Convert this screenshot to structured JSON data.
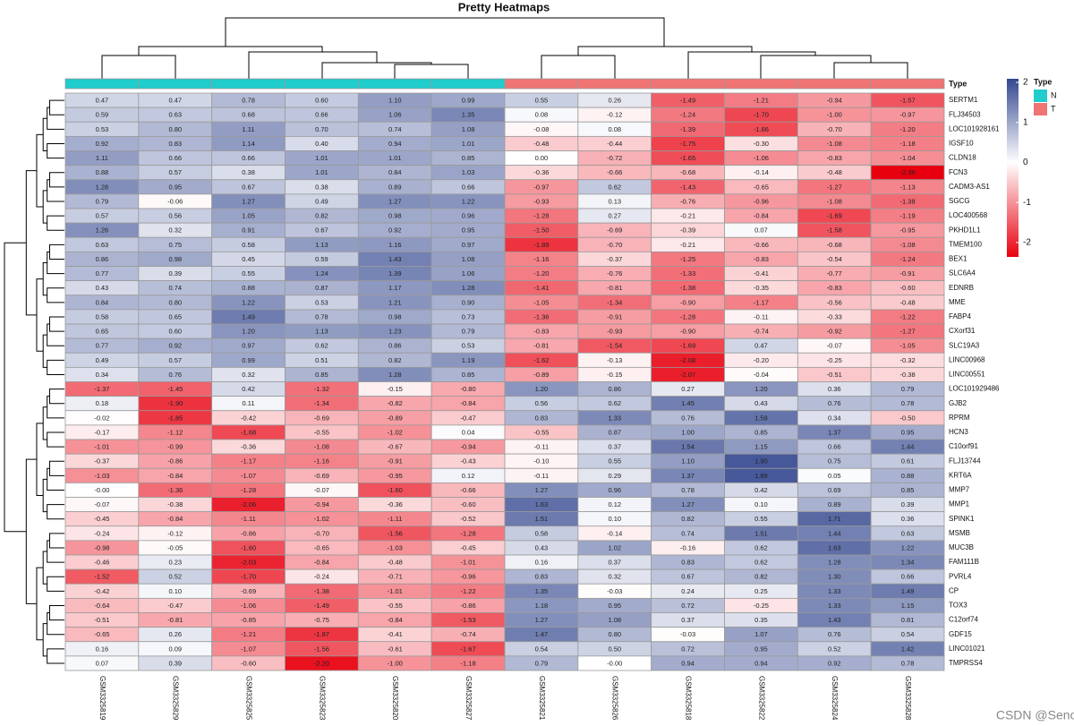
{
  "chart_data": {
    "type": "heatmap",
    "title": "Pretty Heatmaps",
    "columns": [
      "GSM3325819",
      "GSM3325829",
      "GSM3325825",
      "GSM3325823",
      "GSM3325820",
      "GSM3325827",
      "GSM3325821",
      "GSM3325826",
      "GSM3325818",
      "GSM3325822",
      "GSM3325824",
      "GSM3325828"
    ],
    "column_types": [
      "N",
      "N",
      "N",
      "N",
      "N",
      "N",
      "T",
      "T",
      "T",
      "T",
      "T",
      "T"
    ],
    "rows": [
      "SERTM1",
      "FLJ34503",
      "LOC101928161",
      "IGSF10",
      "CLDN18",
      "FCN3",
      "CADM3-AS1",
      "SGCG",
      "LOC400568",
      "PKHD1L1",
      "TMEM100",
      "BEX1",
      "SLC6A4",
      "EDNRB",
      "MME",
      "FABP4",
      "CXorf31",
      "SLC19A3",
      "LINC00968",
      "LINC00551",
      "LOC101929486",
      "GJB2",
      "RPRM",
      "HCN3",
      "C10orf91",
      "FLJ13744",
      "KRT6A",
      "MMP7",
      "MMP1",
      "SPINK1",
      "MSMB",
      "MUC3B",
      "FAM111B",
      "PVRL4",
      "CP",
      "TOX3",
      "C12orf74",
      "GDF15",
      "LINC01021",
      "TMPRSS4"
    ],
    "values": [
      [
        0.47,
        0.47,
        0.78,
        0.6,
        1.1,
        0.99,
        0.55,
        0.26,
        -1.49,
        -1.21,
        -0.94,
        -1.57
      ],
      [
        0.59,
        0.63,
        0.68,
        0.66,
        1.06,
        1.35,
        0.08,
        -0.12,
        -1.24,
        -1.7,
        -1.0,
        -0.97
      ],
      [
        0.53,
        0.8,
        1.11,
        0.7,
        0.74,
        1.08,
        -0.08,
        0.08,
        -1.39,
        -1.66,
        -0.7,
        -1.2
      ],
      [
        0.92,
        0.83,
        1.14,
        0.4,
        0.94,
        1.01,
        -0.48,
        -0.44,
        -1.75,
        -0.3,
        -1.08,
        -1.18
      ],
      [
        1.11,
        0.66,
        0.66,
        1.01,
        1.01,
        0.85,
        0.0,
        -0.72,
        -1.65,
        -1.06,
        -0.83,
        -1.04
      ],
      [
        0.88,
        0.57,
        0.38,
        1.01,
        0.84,
        1.03,
        -0.36,
        -0.66,
        -0.68,
        -0.14,
        -0.48,
        -2.36
      ],
      [
        1.28,
        0.95,
        0.67,
        0.38,
        0.89,
        0.66,
        -0.97,
        0.62,
        -1.43,
        -0.65,
        -1.27,
        -1.13
      ],
      [
        0.79,
        -0.06,
        1.27,
        0.49,
        1.27,
        1.22,
        -0.93,
        0.13,
        -0.76,
        -0.96,
        -1.08,
        -1.38
      ],
      [
        0.57,
        0.56,
        1.05,
        0.82,
        0.98,
        0.96,
        -1.28,
        0.27,
        -0.21,
        -0.84,
        -1.69,
        -1.19
      ],
      [
        1.26,
        0.32,
        0.91,
        0.67,
        0.92,
        0.95,
        -1.5,
        -0.69,
        -0.39,
        0.07,
        -1.58,
        -0.95
      ],
      [
        0.63,
        0.75,
        0.58,
        1.13,
        1.16,
        0.97,
        -1.89,
        -0.7,
        -0.21,
        -0.66,
        -0.68,
        -1.08
      ],
      [
        0.86,
        0.98,
        0.45,
        0.59,
        1.43,
        1.08,
        -1.16,
        -0.37,
        -1.25,
        -0.83,
        -0.54,
        -1.24
      ],
      [
        0.77,
        0.39,
        0.55,
        1.24,
        1.39,
        1.06,
        -1.2,
        -0.76,
        -1.33,
        -0.41,
        -0.77,
        -0.91
      ],
      [
        0.43,
        0.74,
        0.88,
        0.87,
        1.17,
        1.28,
        -1.41,
        -0.81,
        -1.38,
        -0.35,
        -0.83,
        -0.6
      ],
      [
        0.84,
        0.8,
        1.22,
        0.53,
        1.21,
        0.9,
        -1.05,
        -1.34,
        -0.9,
        -1.17,
        -0.56,
        -0.48
      ],
      [
        0.58,
        0.65,
        1.49,
        0.78,
        0.98,
        0.73,
        -1.36,
        -0.91,
        -1.28,
        -0.11,
        -0.33,
        -1.22
      ],
      [
        0.65,
        0.6,
        1.2,
        1.13,
        1.23,
        0.79,
        -0.83,
        -0.93,
        -0.9,
        -0.74,
        -0.92,
        -1.27
      ],
      [
        0.77,
        0.92,
        0.97,
        0.62,
        0.86,
        0.53,
        -0.81,
        -1.54,
        -1.69,
        0.47,
        -0.07,
        -1.05
      ],
      [
        0.49,
        0.57,
        0.99,
        0.51,
        0.82,
        1.19,
        -1.62,
        -0.13,
        -2.08,
        -0.2,
        -0.25,
        -0.32
      ],
      [
        0.34,
        0.76,
        0.32,
        0.85,
        1.28,
        0.85,
        -0.89,
        -0.15,
        -2.07,
        -0.04,
        -0.51,
        -0.38
      ],
      [
        -1.37,
        -1.45,
        0.42,
        -1.32,
        -0.15,
        -0.8,
        1.2,
        0.86,
        0.27,
        1.2,
        0.36,
        0.79
      ],
      [
        0.18,
        -1.9,
        0.11,
        -1.34,
        -0.82,
        -0.84,
        0.56,
        0.62,
        1.45,
        0.43,
        0.76,
        0.78
      ],
      [
        -0.02,
        -1.85,
        -0.42,
        -0.69,
        -0.89,
        -0.47,
        0.83,
        1.33,
        0.76,
        1.59,
        0.34,
        -0.5
      ],
      [
        -0.17,
        -1.12,
        -1.68,
        -0.55,
        -1.02,
        0.04,
        -0.55,
        0.87,
        1.0,
        0.85,
        1.37,
        0.95
      ],
      [
        -1.01,
        -0.99,
        -0.36,
        -1.08,
        -0.67,
        -0.94,
        -0.11,
        0.37,
        1.54,
        1.15,
        0.66,
        1.44
      ],
      [
        -0.37,
        -0.86,
        -1.17,
        -1.16,
        -0.91,
        -0.43,
        -0.1,
        0.55,
        1.1,
        1.9,
        0.75,
        0.61
      ],
      [
        -1.03,
        -0.84,
        -1.07,
        -0.69,
        -0.95,
        0.12,
        -0.11,
        0.29,
        1.37,
        1.89,
        0.05,
        0.88
      ],
      [
        0.0,
        -1.36,
        -1.28,
        -0.07,
        -1.6,
        -0.66,
        1.27,
        0.96,
        0.78,
        0.42,
        0.69,
        0.85
      ],
      [
        -0.07,
        -0.38,
        -2.06,
        -0.94,
        -0.36,
        -0.6,
        1.63,
        0.12,
        1.27,
        0.1,
        0.89,
        0.39
      ],
      [
        -0.45,
        -0.84,
        -1.11,
        -1.02,
        -1.11,
        -0.52,
        1.51,
        0.1,
        0.82,
        0.55,
        1.71,
        0.36
      ],
      [
        -0.24,
        -0.12,
        -0.86,
        -0.7,
        -1.56,
        -1.28,
        0.58,
        -0.14,
        0.74,
        1.51,
        1.44,
        0.63
      ],
      [
        -0.98,
        -0.05,
        -1.6,
        -0.65,
        -1.03,
        -0.45,
        0.43,
        1.02,
        -0.16,
        0.62,
        1.63,
        1.22
      ],
      [
        -0.46,
        0.23,
        -2.03,
        -0.84,
        -0.48,
        -1.01,
        0.16,
        0.37,
        0.83,
        0.62,
        1.28,
        1.34
      ],
      [
        -1.52,
        0.52,
        -1.7,
        -0.24,
        -0.71,
        -0.96,
        0.83,
        0.32,
        0.67,
        0.82,
        1.3,
        0.66
      ],
      [
        -0.42,
        0.1,
        -0.69,
        -1.38,
        -1.01,
        -1.22,
        1.35,
        -0.03,
        0.24,
        0.25,
        1.33,
        1.49
      ],
      [
        -0.64,
        -0.47,
        -1.06,
        -1.49,
        -0.55,
        -0.86,
        1.18,
        0.95,
        0.72,
        -0.25,
        1.33,
        1.15
      ],
      [
        -0.51,
        -0.81,
        -0.85,
        -0.75,
        -0.84,
        -1.53,
        1.27,
        1.08,
        0.37,
        0.35,
        1.43,
        0.81
      ],
      [
        -0.65,
        0.26,
        -1.21,
        -1.87,
        -0.41,
        -0.74,
        1.47,
        0.8,
        -0.03,
        1.07,
        0.76,
        0.54
      ],
      [
        0.16,
        0.09,
        -1.07,
        -1.56,
        -0.61,
        -1.67,
        0.54,
        0.5,
        0.72,
        0.95,
        0.52,
        1.42
      ],
      [
        0.07,
        0.39,
        -0.6,
        -2.2,
        -1.0,
        -1.18,
        0.79,
        0.0,
        0.94,
        0.94,
        0.92,
        0.78
      ]
    ],
    "value_labels": [
      [
        "0.47",
        "0.47",
        "0.78",
        "0.60",
        "1.10",
        "0.99",
        "0.55",
        "0.26",
        "-1.49",
        "-1.21",
        "-0.94",
        "-1.57"
      ],
      [
        "0.59",
        "0.63",
        "0.68",
        "0.66",
        "1.06",
        "1.35",
        "0.08",
        "-0.12",
        "-1.24",
        "-1.70",
        "-1.00",
        "-0.97"
      ],
      [
        "0.53",
        "0.80",
        "1.11",
        "0.70",
        "0.74",
        "1.08",
        "-0.08",
        "0.08",
        "-1.39",
        "-1.66",
        "-0.70",
        "-1.20"
      ],
      [
        "0.92",
        "0.83",
        "1.14",
        "0.40",
        "0.94",
        "1.01",
        "-0.48",
        "-0.44",
        "-1.75",
        "-0.30",
        "-1.08",
        "-1.18"
      ],
      [
        "1.11",
        "0.66",
        "0.66",
        "1.01",
        "1.01",
        "0.85",
        "0.00",
        "-0.72",
        "-1.65",
        "-1.06",
        "-0.83",
        "-1.04"
      ],
      [
        "0.88",
        "0.57",
        "0.38",
        "1.01",
        "0.84",
        "1.03",
        "-0.36",
        "-0.66",
        "-0.68",
        "-0.14",
        "-0.48",
        "-2.36"
      ],
      [
        "1.28",
        "0.95",
        "0.67",
        "0.38",
        "0.89",
        "0.66",
        "-0.97",
        "0.62",
        "-1.43",
        "-0.65",
        "-1.27",
        "-1.13"
      ],
      [
        "0.79",
        "-0.06",
        "1.27",
        "0.49",
        "1.27",
        "1.22",
        "-0.93",
        "0.13",
        "-0.76",
        "-0.96",
        "-1.08",
        "-1.38"
      ],
      [
        "0.57",
        "0.56",
        "1.05",
        "0.82",
        "0.98",
        "0.96",
        "-1.28",
        "0.27",
        "-0.21",
        "-0.84",
        "-1.69",
        "-1.19"
      ],
      [
        "1.26",
        "0.32",
        "0.91",
        "0.67",
        "0.92",
        "0.95",
        "-1.50",
        "-0.69",
        "-0.39",
        "0.07",
        "-1.58",
        "-0.95"
      ],
      [
        "0.63",
        "0.75",
        "0.58",
        "1.13",
        "1.16",
        "0.97",
        "-1.89",
        "-0.70",
        "-0.21",
        "-0.66",
        "-0.68",
        "-1.08"
      ],
      [
        "0.86",
        "0.98",
        "0.45",
        "0.59",
        "1.43",
        "1.08",
        "-1.16",
        "-0.37",
        "-1.25",
        "-0.83",
        "-0.54",
        "-1.24"
      ],
      [
        "0.77",
        "0.39",
        "0.55",
        "1.24",
        "1.39",
        "1.06",
        "-1.20",
        "-0.76",
        "-1.33",
        "-0.41",
        "-0.77",
        "-0.91"
      ],
      [
        "0.43",
        "0.74",
        "0.88",
        "0.87",
        "1.17",
        "1.28",
        "-1.41",
        "-0.81",
        "-1.38",
        "-0.35",
        "-0.83",
        "-0.60"
      ],
      [
        "0.84",
        "0.80",
        "1.22",
        "0.53",
        "1.21",
        "0.90",
        "-1.05",
        "-1.34",
        "-0.90",
        "-1.17",
        "-0.56",
        "-0.48"
      ],
      [
        "0.58",
        "0.65",
        "1.49",
        "0.78",
        "0.98",
        "0.73",
        "-1.36",
        "-0.91",
        "-1.28",
        "-0.11",
        "-0.33",
        "-1.22"
      ],
      [
        "0.65",
        "0.60",
        "1.20",
        "1.13",
        "1.23",
        "0.79",
        "-0.83",
        "-0.93",
        "-0.90",
        "-0.74",
        "-0.92",
        "-1.27"
      ],
      [
        "0.77",
        "0.92",
        "0.97",
        "0.62",
        "0.86",
        "0.53",
        "-0.81",
        "-1.54",
        "-1.69",
        "0.47",
        "-0.07",
        "-1.05"
      ],
      [
        "0.49",
        "0.57",
        "0.99",
        "0.51",
        "0.82",
        "1.19",
        "-1.62",
        "-0.13",
        "-2.08",
        "-0.20",
        "-0.25",
        "-0.32"
      ],
      [
        "0.34",
        "0.76",
        "0.32",
        "0.85",
        "1.28",
        "0.85",
        "-0.89",
        "-0.15",
        "-2.07",
        "-0.04",
        "-0.51",
        "-0.38"
      ],
      [
        "-1.37",
        "-1.45",
        "0.42",
        "-1.32",
        "-0.15",
        "-0.80",
        "1.20",
        "0.86",
        "0.27",
        "1.20",
        "0.36",
        "0.79"
      ],
      [
        "0.18",
        "-1.90",
        "0.11",
        "-1.34",
        "-0.82",
        "-0.84",
        "0.56",
        "0.62",
        "1.45",
        "0.43",
        "0.76",
        "0.78"
      ],
      [
        "-0.02",
        "-1.85",
        "-0.42",
        "-0.69",
        "-0.89",
        "-0.47",
        "0.83",
        "1.33",
        "0.76",
        "1.59",
        "0.34",
        "-0.50"
      ],
      [
        "-0.17",
        "-1.12",
        "-1.68",
        "-0.55",
        "-1.02",
        "0.04",
        "-0.55",
        "0.87",
        "1.00",
        "0.85",
        "1.37",
        "0.95"
      ],
      [
        "-1.01",
        "-0.99",
        "-0.36",
        "-1.08",
        "-0.67",
        "-0.94",
        "-0.11",
        "0.37",
        "1.54",
        "1.15",
        "0.66",
        "1.44"
      ],
      [
        "-0.37",
        "-0.86",
        "-1.17",
        "-1.16",
        "-0.91",
        "-0.43",
        "-0.10",
        "0.55",
        "1.10",
        "1.90",
        "0.75",
        "0.61"
      ],
      [
        "-1.03",
        "-0.84",
        "-1.07",
        "-0.69",
        "-0.95",
        "0.12",
        "-0.11",
        "0.29",
        "1.37",
        "1.89",
        "0.05",
        "0.88"
      ],
      [
        "-0.00",
        "-1.36",
        "-1.28",
        "-0.07",
        "-1.60",
        "-0.66",
        "1.27",
        "0.96",
        "0.78",
        "0.42",
        "0.69",
        "0.85"
      ],
      [
        "-0.07",
        "-0.38",
        "-2.06",
        "-0.94",
        "-0.36",
        "-0.60",
        "1.63",
        "0.12",
        "1.27",
        "0.10",
        "0.89",
        "0.39"
      ],
      [
        "-0.45",
        "-0.84",
        "-1.11",
        "-1.02",
        "-1.11",
        "-0.52",
        "1.51",
        "0.10",
        "0.82",
        "0.55",
        "1.71",
        "0.36"
      ],
      [
        "-0.24",
        "-0.12",
        "-0.86",
        "-0.70",
        "-1.56",
        "-1.28",
        "0.58",
        "-0.14",
        "0.74",
        "1.51",
        "1.44",
        "0.63"
      ],
      [
        "-0.98",
        "-0.05",
        "-1.60",
        "-0.65",
        "-1.03",
        "-0.45",
        "0.43",
        "1.02",
        "-0.16",
        "0.62",
        "1.63",
        "1.22"
      ],
      [
        "-0.46",
        "0.23",
        "-2.03",
        "-0.84",
        "-0.48",
        "-1.01",
        "0.16",
        "0.37",
        "0.83",
        "0.62",
        "1.28",
        "1.34"
      ],
      [
        "-1.52",
        "0.52",
        "-1.70",
        "-0.24",
        "-0.71",
        "-0.96",
        "0.83",
        "0.32",
        "0.67",
        "0.82",
        "1.30",
        "0.66"
      ],
      [
        "-0.42",
        "0.10",
        "-0.69",
        "-1.38",
        "-1.01",
        "-1.22",
        "1.35",
        "-0.03",
        "0.24",
        "0.25",
        "1.33",
        "1.49"
      ],
      [
        "-0.64",
        "-0.47",
        "-1.06",
        "-1.49",
        "-0.55",
        "-0.86",
        "1.18",
        "0.95",
        "0.72",
        "-0.25",
        "1.33",
        "1.15"
      ],
      [
        "-0.51",
        "-0.81",
        "-0.85",
        "-0.75",
        "-0.84",
        "-1.53",
        "1.27",
        "1.08",
        "0.37",
        "0.35",
        "1.43",
        "0.81"
      ],
      [
        "-0.65",
        "0.26",
        "-1.21",
        "-1.87",
        "-0.41",
        "-0.74",
        "1.47",
        "0.80",
        "-0.03",
        "1.07",
        "0.76",
        "0.54"
      ],
      [
        "0.16",
        "0.09",
        "-1.07",
        "-1.56",
        "-0.61",
        "-1.67",
        "0.54",
        "0.50",
        "0.72",
        "0.95",
        "0.52",
        "1.42"
      ],
      [
        "0.07",
        "0.39",
        "-0.60",
        "-2.20",
        "-1.00",
        "-1.18",
        "0.79",
        "-0.00",
        "0.94",
        "0.94",
        "0.92",
        "0.78"
      ]
    ],
    "annotation": {
      "title": "Type",
      "levels": [
        {
          "name": "N",
          "color": "#20cccc"
        },
        {
          "name": "T",
          "color": "#f07474"
        }
      ]
    },
    "colorscale": [
      "#e8000f",
      "#ffffff",
      "#33478f"
    ],
    "colorlim": [
      -2.36,
      2.09
    ],
    "colorticks": [
      2,
      1,
      0,
      -1,
      -2
    ]
  },
  "watermark": "CSDN @Senoh."
}
